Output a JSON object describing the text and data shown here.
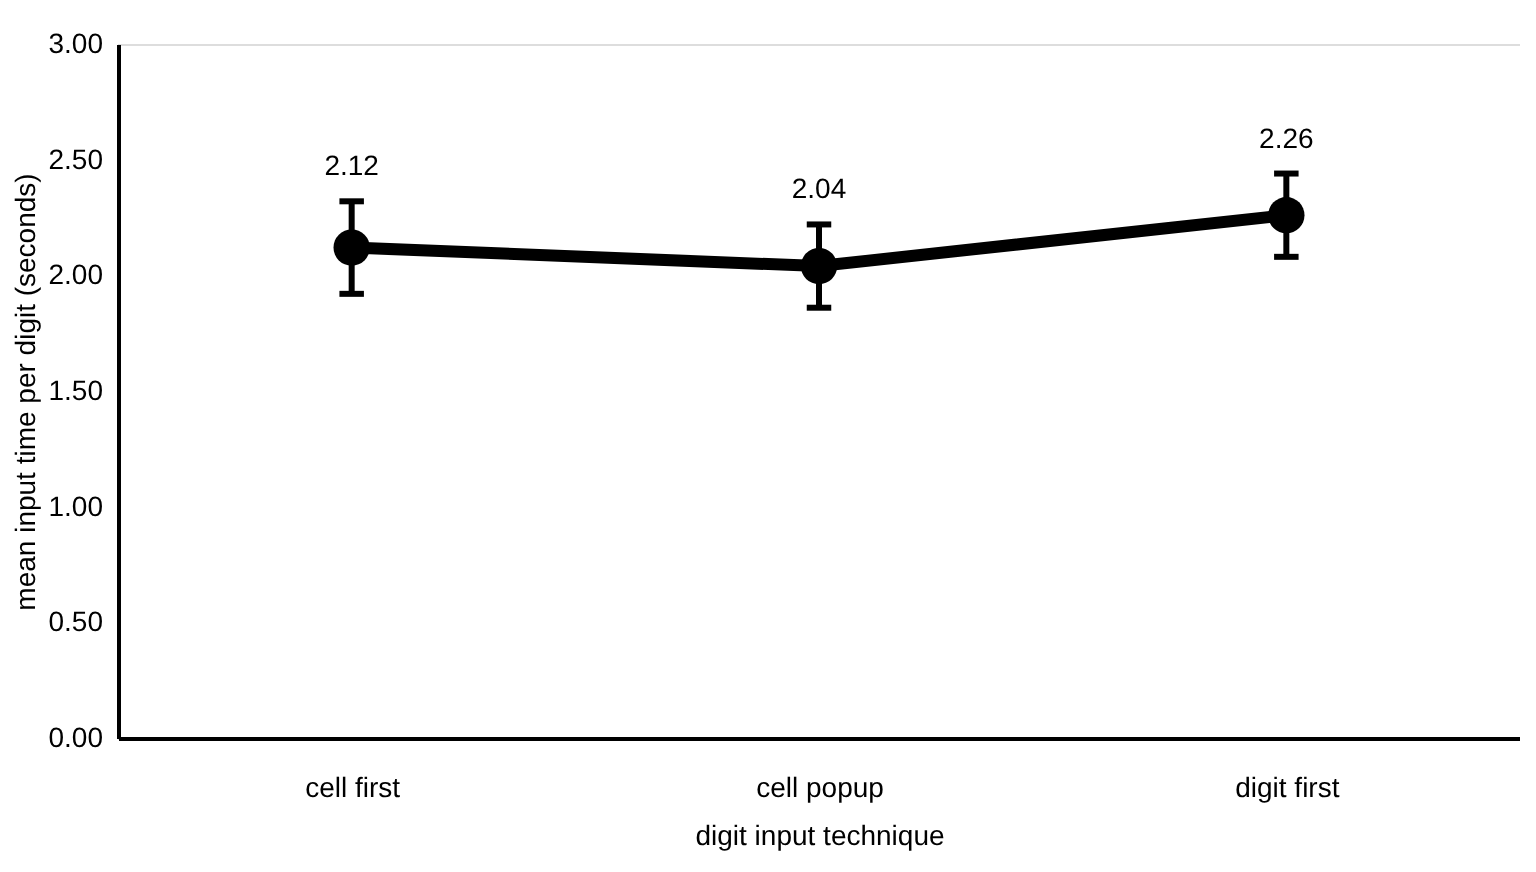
{
  "chart_data": {
    "type": "line",
    "xlabel": "digit input technique",
    "ylabel": "mean input time per digit (seconds)",
    "categories": [
      "cell first",
      "cell popup",
      "digit first"
    ],
    "series": [
      {
        "color": "#000000",
        "values": [
          2.12,
          2.04,
          2.26
        ],
        "errors": [
          0.2,
          0.18,
          0.18
        ]
      }
    ],
    "ylim": [
      0,
      3
    ],
    "yticks": [
      {
        "value": 0,
        "label": "0.00"
      },
      {
        "value": 0.5,
        "label": "0.50"
      },
      {
        "value": 1,
        "label": "1.00"
      },
      {
        "value": 1.5,
        "label": "1.50"
      },
      {
        "value": 2,
        "label": "2.00"
      },
      {
        "value": 2.5,
        "label": "2.50"
      },
      {
        "value": 3,
        "label": "3.00"
      }
    ],
    "data_labels": true,
    "grid": false,
    "marker": "circle",
    "line_style": "solid"
  }
}
